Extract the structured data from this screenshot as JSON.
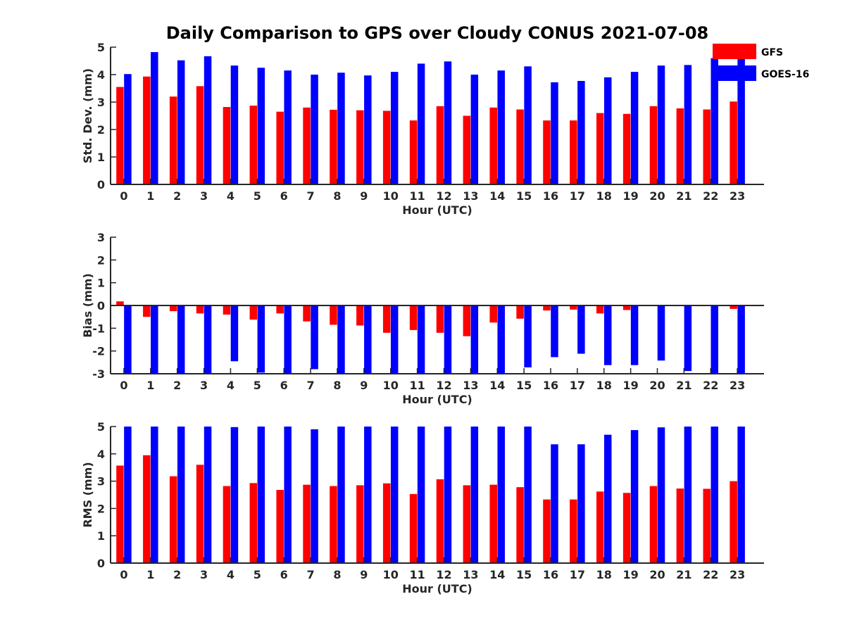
{
  "title": "Daily Comparison to GPS over Cloudy CONUS 2021-07-08",
  "legend": {
    "placement": "top-right",
    "entries": [
      {
        "name": "GFS",
        "color": "#ff0000"
      },
      {
        "name": "GOES-16",
        "color": "#0000ff"
      }
    ]
  },
  "chart_data": [
    {
      "type": "bar",
      "ylabel": "Std. Dev. (mm)",
      "xlabel": "Hour (UTC)",
      "ylim": [
        0,
        5
      ],
      "yticks": [
        0,
        1,
        2,
        3,
        4,
        5
      ],
      "categories": [
        "0",
        "1",
        "2",
        "3",
        "4",
        "5",
        "6",
        "7",
        "8",
        "9",
        "10",
        "11",
        "12",
        "13",
        "14",
        "15",
        "16",
        "17",
        "18",
        "19",
        "20",
        "21",
        "22",
        "23"
      ],
      "series": [
        {
          "name": "GFS",
          "color": "#ff0000",
          "values": [
            3.55,
            3.93,
            3.2,
            3.58,
            2.82,
            2.87,
            2.65,
            2.8,
            2.72,
            2.7,
            2.68,
            2.33,
            2.85,
            2.5,
            2.8,
            2.73,
            2.33,
            2.33,
            2.6,
            2.57,
            2.85,
            2.77,
            2.73,
            3.02
          ]
        },
        {
          "name": "GOES-16",
          "color": "#0000ff",
          "values": [
            4.02,
            4.82,
            4.52,
            4.67,
            4.33,
            4.25,
            4.15,
            4.0,
            4.07,
            3.97,
            4.1,
            4.4,
            4.48,
            4.0,
            4.15,
            4.3,
            3.72,
            3.77,
            3.9,
            4.1,
            4.33,
            4.35,
            4.6,
            4.6
          ]
        }
      ]
    },
    {
      "type": "bar",
      "ylabel": "Bias (mm)",
      "xlabel": "Hour (UTC)",
      "ylim": [
        -3,
        3
      ],
      "yticks": [
        -3,
        -2,
        -1,
        0,
        1,
        2,
        3
      ],
      "categories": [
        "0",
        "1",
        "2",
        "3",
        "4",
        "5",
        "6",
        "7",
        "8",
        "9",
        "10",
        "11",
        "12",
        "13",
        "14",
        "15",
        "16",
        "17",
        "18",
        "19",
        "20",
        "21",
        "22",
        "23"
      ],
      "series": [
        {
          "name": "GFS",
          "color": "#ff0000",
          "values": [
            0.18,
            -0.5,
            -0.25,
            -0.35,
            -0.4,
            -0.62,
            -0.35,
            -0.7,
            -0.85,
            -0.88,
            -1.2,
            -1.08,
            -1.2,
            -1.35,
            -0.75,
            -0.58,
            -0.22,
            -0.18,
            -0.35,
            -0.2,
            0.0,
            0.0,
            0.0,
            -0.15
          ]
        },
        {
          "name": "GOES-16",
          "color": "#0000ff",
          "values": [
            -3.0,
            -3.0,
            -3.0,
            -3.0,
            -2.45,
            -2.95,
            -3.0,
            -2.8,
            -3.0,
            -3.0,
            -3.0,
            -3.0,
            -3.0,
            -3.0,
            -3.0,
            -2.72,
            -2.27,
            -2.12,
            -2.62,
            -2.62,
            -2.42,
            -2.88,
            -3.0,
            -3.0
          ]
        }
      ]
    },
    {
      "type": "bar",
      "ylabel": "RMS (mm)",
      "xlabel": "Hour (UTC)",
      "ylim": [
        0,
        5
      ],
      "yticks": [
        0,
        1,
        2,
        3,
        4,
        5
      ],
      "categories": [
        "0",
        "1",
        "2",
        "3",
        "4",
        "5",
        "6",
        "7",
        "8",
        "9",
        "10",
        "11",
        "12",
        "13",
        "14",
        "15",
        "16",
        "17",
        "18",
        "19",
        "20",
        "21",
        "22",
        "23"
      ],
      "series": [
        {
          "name": "GFS",
          "color": "#ff0000",
          "values": [
            3.57,
            3.95,
            3.18,
            3.6,
            2.82,
            2.93,
            2.68,
            2.87,
            2.82,
            2.85,
            2.92,
            2.53,
            3.07,
            2.85,
            2.87,
            2.78,
            2.33,
            2.33,
            2.62,
            2.57,
            2.82,
            2.73,
            2.72,
            3.0
          ]
        },
        {
          "name": "GOES-16",
          "color": "#0000ff",
          "values": [
            5.0,
            5.0,
            5.0,
            5.0,
            4.98,
            5.0,
            5.0,
            4.9,
            5.0,
            5.0,
            5.0,
            5.0,
            5.0,
            5.0,
            5.0,
            5.0,
            4.35,
            4.35,
            4.7,
            4.87,
            4.97,
            5.0,
            5.0,
            5.0
          ]
        }
      ]
    }
  ]
}
